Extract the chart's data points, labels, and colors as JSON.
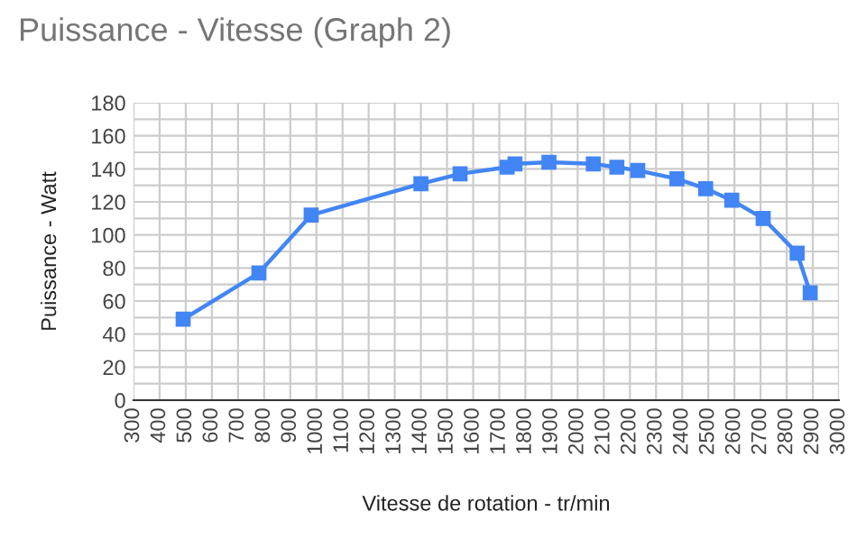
{
  "chart_data": {
    "type": "line",
    "title": "Puissance - Vitesse (Graph 2)",
    "xlabel": "Vitesse de rotation - tr/min",
    "ylabel": "Puissance - Watt",
    "x": [
      490,
      780,
      980,
      1400,
      1550,
      1730,
      1760,
      1890,
      2060,
      2150,
      2230,
      2380,
      2490,
      2590,
      2710,
      2840,
      2890
    ],
    "series": [
      {
        "color": "#4285f4",
        "values": [
          49,
          77,
          112,
          131,
          137,
          141,
          143,
          144,
          143,
          141,
          139,
          134,
          128,
          121,
          110,
          89,
          65
        ]
      }
    ],
    "xlim": [
      300,
      3000
    ],
    "xticks": [
      300,
      400,
      500,
      600,
      700,
      800,
      900,
      1000,
      1100,
      1200,
      1300,
      1400,
      1500,
      1600,
      1700,
      1800,
      1900,
      2000,
      2100,
      2200,
      2300,
      2400,
      2500,
      2600,
      2700,
      2800,
      2900,
      3000
    ],
    "ylim": [
      0,
      180
    ],
    "yticks": [
      0,
      {
        "value": 10,
        "label": null
      },
      20,
      {
        "value": 30,
        "label": null
      },
      40,
      {
        "value": 50,
        "label": null
      },
      60,
      {
        "value": 70,
        "label": null
      },
      80,
      {
        "value": 90,
        "label": null
      },
      100,
      {
        "value": 110,
        "label": null
      },
      120,
      {
        "value": 130,
        "label": null
      },
      140,
      {
        "value": 150,
        "label": null
      },
      160,
      {
        "value": 170,
        "label": null
      },
      180
    ],
    "grid": true,
    "marker": "square",
    "line_style": "solid"
  }
}
